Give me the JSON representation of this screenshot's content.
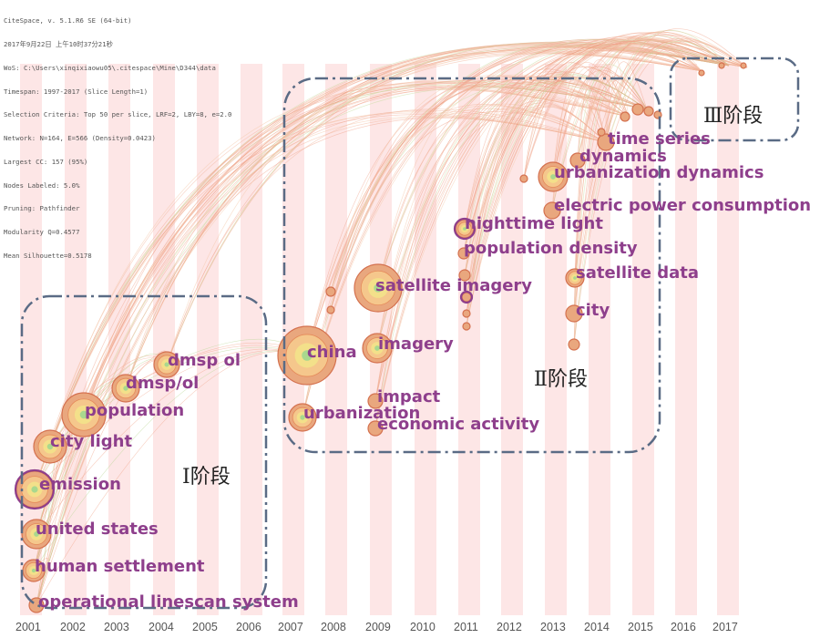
{
  "header_lines": [
    "CiteSpace, v. 5.1.R6 SE (64-bit)",
    "2017年9月22日 上午10时37分21秒",
    "WoS: C:\\Users\\xinqixiaowu05\\.citespace\\Mine\\D344\\data",
    "Timespan: 1997-2017 (Slice Length=1)",
    "Selection Criteria: Top 50 per slice, LRF=2, LBY=8, e=2.0",
    "Network: N=164, E=566 (Density=0.0423)",
    "Largest CC: 157 (95%)",
    "Nodes Labeled: 5.0%",
    "Pruning: Pathfinder",
    "Modularity Q=0.4577",
    "Mean Silhouette=0.5178"
  ],
  "years": [
    "2001",
    "2002",
    "2003",
    "2004",
    "2005",
    "2006",
    "2007",
    "2008",
    "2009",
    "2010",
    "2011",
    "2012",
    "2013",
    "2014",
    "2015",
    "2016",
    "2017"
  ],
  "stages": {
    "stage1": "Ⅰ阶段",
    "stage2": "Ⅱ阶段",
    "stage3": "Ⅲ阶段"
  },
  "keywords": [
    {
      "id": "operational-linescan-system",
      "label": "operational linescan system"
    },
    {
      "id": "human-settlement",
      "label": "human settlement"
    },
    {
      "id": "united-states",
      "label": "united states"
    },
    {
      "id": "emission",
      "label": "emission"
    },
    {
      "id": "city-light",
      "label": "city light"
    },
    {
      "id": "population",
      "label": "population"
    },
    {
      "id": "dmsp-ol-slash",
      "label": "dmsp/ol"
    },
    {
      "id": "dmsp-ol",
      "label": "dmsp ol"
    },
    {
      "id": "china",
      "label": "china"
    },
    {
      "id": "urbanization",
      "label": "urbanization"
    },
    {
      "id": "imagery",
      "label": "imagery"
    },
    {
      "id": "impact",
      "label": "impact"
    },
    {
      "id": "economic-activity",
      "label": "economic activity"
    },
    {
      "id": "satellite-imagery",
      "label": "satellite imagery"
    },
    {
      "id": "nighttime-light",
      "label": "nighttime light"
    },
    {
      "id": "population-density",
      "label": "population density"
    },
    {
      "id": "electric-power-consumption",
      "label": "electric power consumption"
    },
    {
      "id": "urbanization-dynamics",
      "label": "urbanization dynamics"
    },
    {
      "id": "dynamics",
      "label": "dynamics"
    },
    {
      "id": "time-series",
      "label": "time series"
    },
    {
      "id": "satellite-data",
      "label": "satellite data"
    },
    {
      "id": "city",
      "label": "city"
    }
  ]
}
